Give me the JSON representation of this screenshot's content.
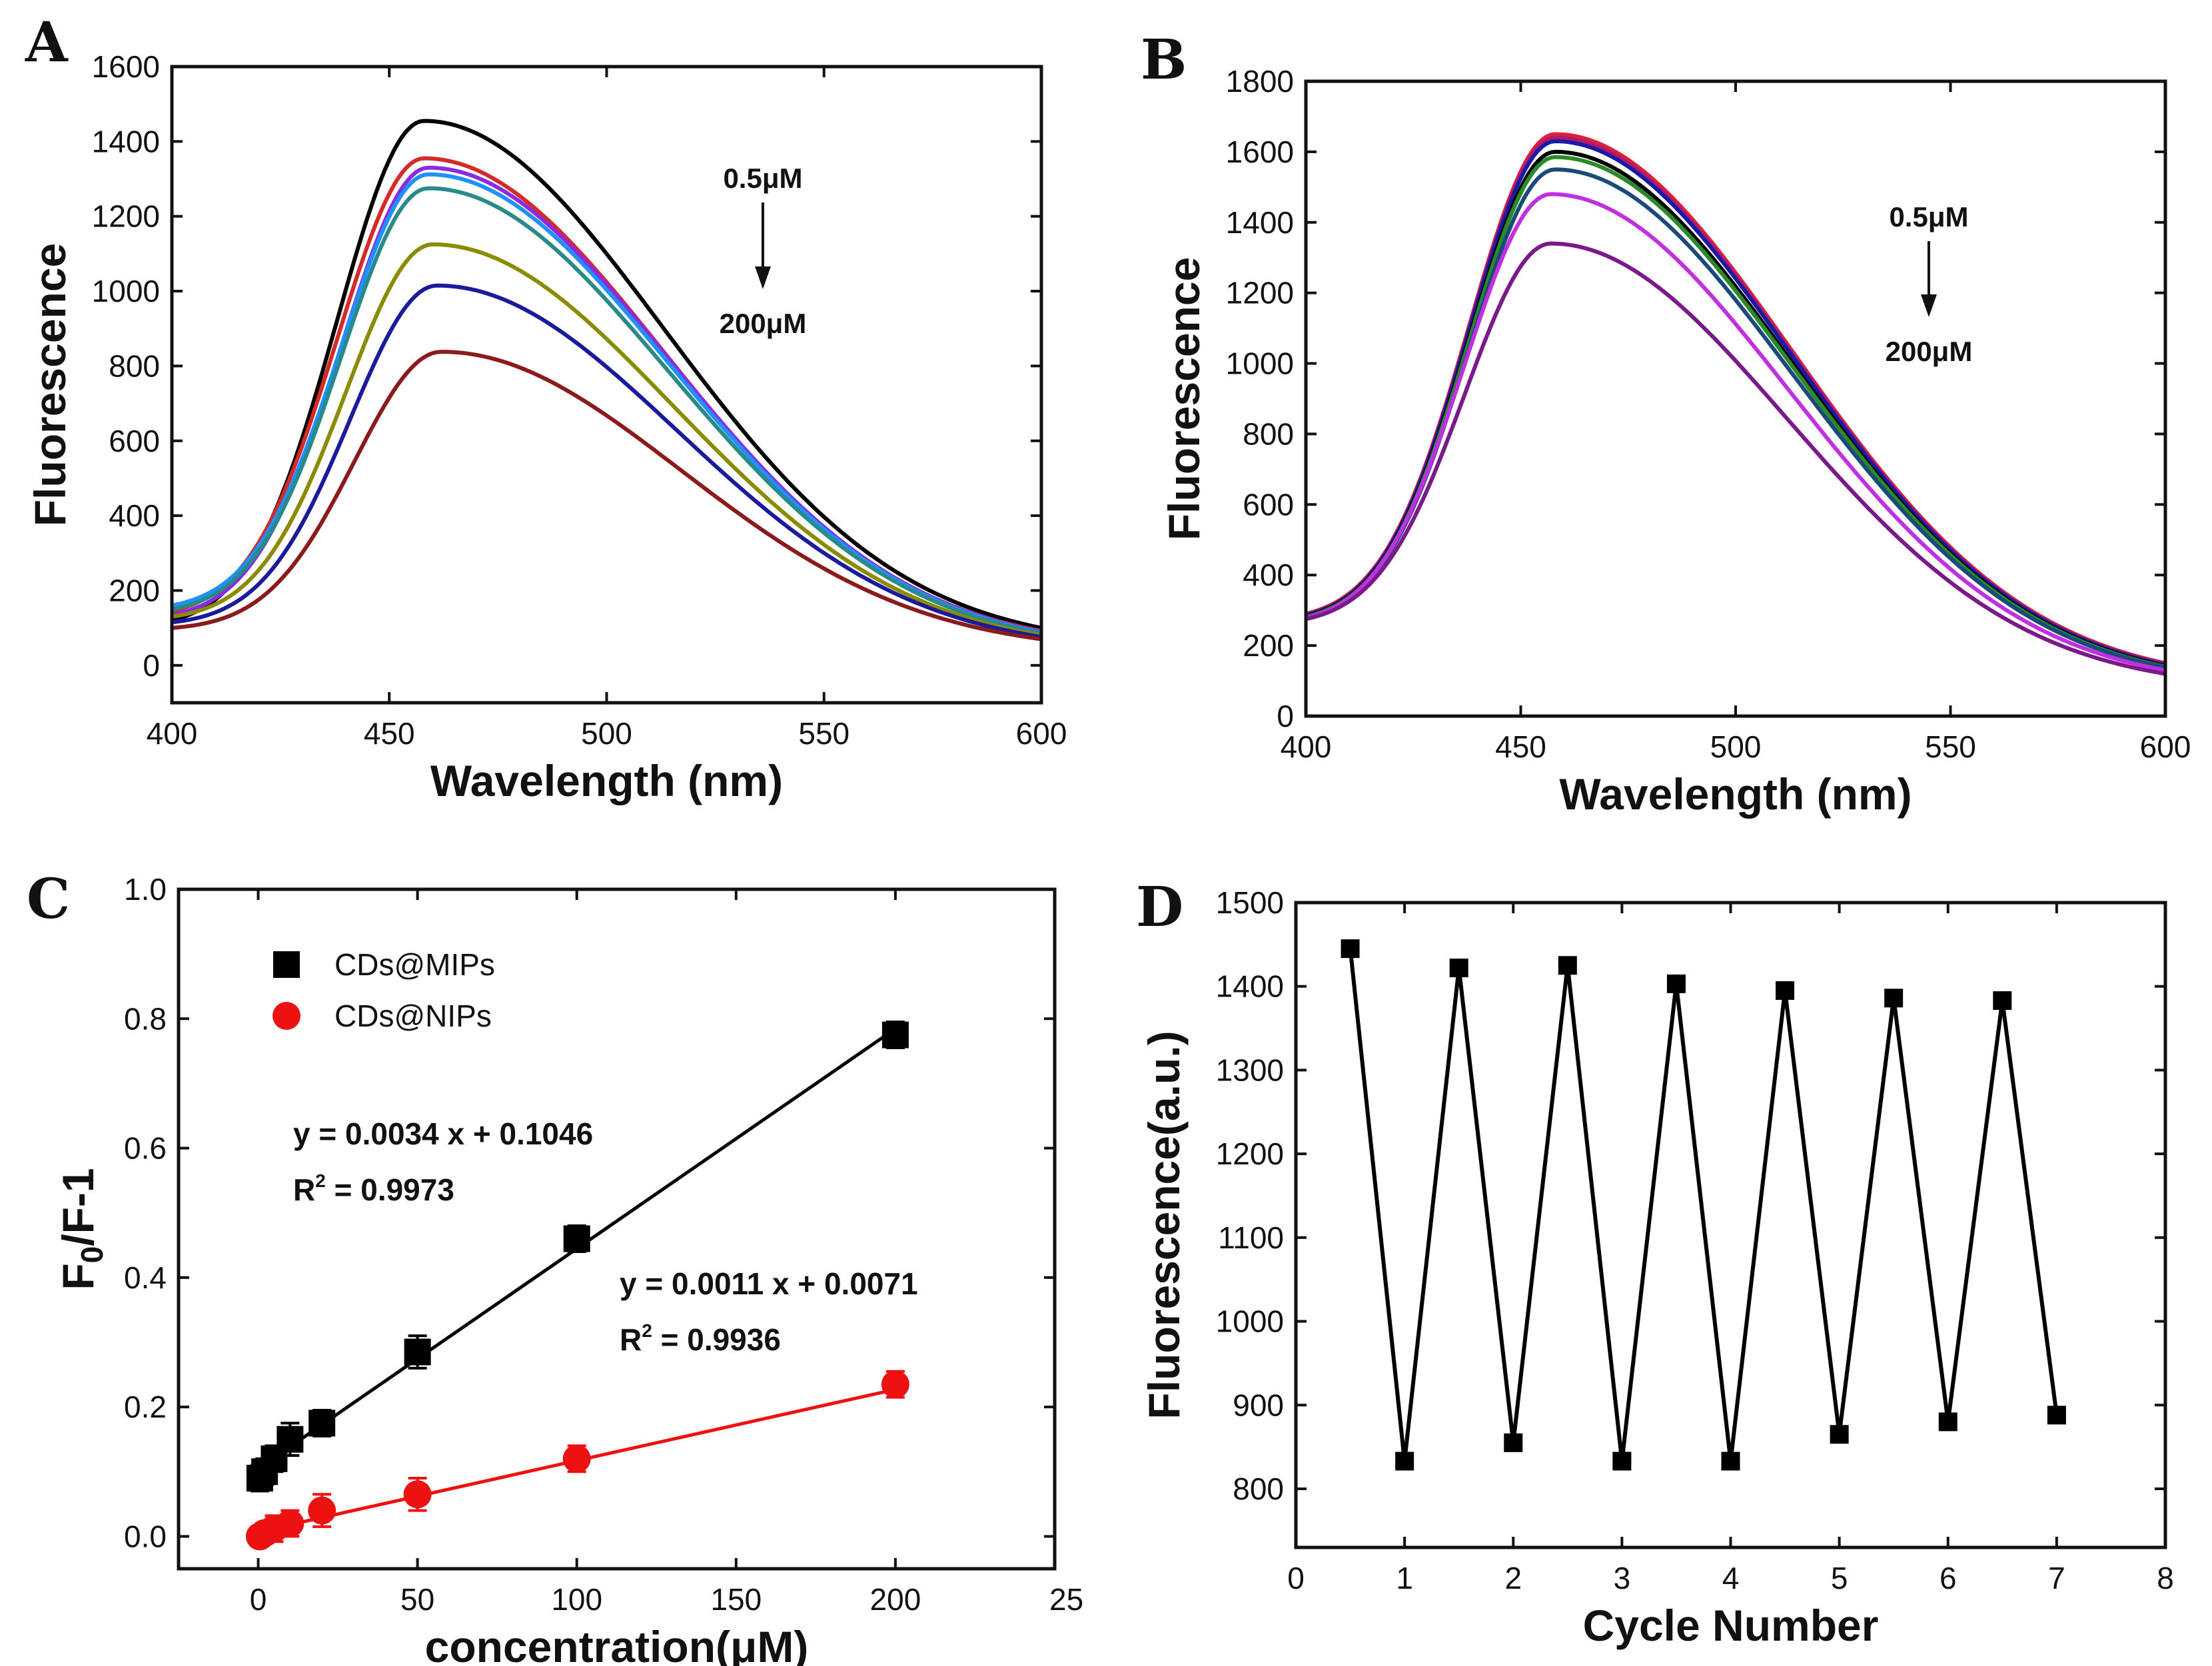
{
  "chart_data": [
    {
      "id": "A",
      "panel_label": "A",
      "type": "line",
      "xlabel": "Wavelength (nm)",
      "ylabel": "Fluorescence",
      "xlim": [
        400,
        600
      ],
      "ylim": [
        -100,
        1600
      ],
      "xticks": [
        400,
        450,
        500,
        550,
        600
      ],
      "yticks": [
        0,
        200,
        400,
        600,
        800,
        1000,
        1200,
        1400,
        1600
      ],
      "annotation_top": "0.5μM",
      "annotation_bottom": "200μM",
      "curves": [
        {
          "color": "#000000",
          "start": 120,
          "peak": 1455,
          "peak_x": 458,
          "end": 100
        },
        {
          "color": "#d42a2a",
          "start": 145,
          "peak": 1355,
          "peak_x": 458,
          "end": 92
        },
        {
          "color": "#8a2be2",
          "start": 135,
          "peak": 1330,
          "peak_x": 459,
          "end": 90
        },
        {
          "color": "#1e90ff",
          "start": 160,
          "peak": 1312,
          "peak_x": 459,
          "end": 88
        },
        {
          "color": "#2a8a8a",
          "start": 150,
          "peak": 1275,
          "peak_x": 459,
          "end": 86
        },
        {
          "color": "#8b8b00",
          "start": 130,
          "peak": 1125,
          "peak_x": 460,
          "end": 80
        },
        {
          "color": "#1a1a9c",
          "start": 115,
          "peak": 1015,
          "peak_x": 461,
          "end": 76
        },
        {
          "color": "#8b1a1a",
          "start": 100,
          "peak": 838,
          "peak_x": 462,
          "end": 70
        }
      ]
    },
    {
      "id": "B",
      "panel_label": "B",
      "type": "line",
      "xlabel": "Wavelength (nm)",
      "ylabel": "Fluorescence",
      "xlim": [
        400,
        600
      ],
      "ylim": [
        0,
        1800
      ],
      "xticks": [
        400,
        450,
        500,
        550,
        600
      ],
      "yticks": [
        0,
        200,
        400,
        600,
        800,
        1000,
        1200,
        1400,
        1600,
        1800
      ],
      "annotation_top": "0.5μM",
      "annotation_bottom": "200μM",
      "curves": [
        {
          "color": "#e0203a",
          "start": 290,
          "peak": 1650,
          "peak_x": 458,
          "end": 150
        },
        {
          "color": "#b01a6a",
          "start": 288,
          "peak": 1640,
          "peak_x": 458,
          "end": 148
        },
        {
          "color": "#1a1aaa",
          "start": 286,
          "peak": 1630,
          "peak_x": 458,
          "end": 145
        },
        {
          "color": "#000000",
          "start": 284,
          "peak": 1600,
          "peak_x": 458,
          "end": 142
        },
        {
          "color": "#2a8a2a",
          "start": 282,
          "peak": 1585,
          "peak_x": 458,
          "end": 140
        },
        {
          "color": "#1a4a7a",
          "start": 280,
          "peak": 1550,
          "peak_x": 458,
          "end": 138
        },
        {
          "color": "#c030e0",
          "start": 278,
          "peak": 1480,
          "peak_x": 457,
          "end": 130
        },
        {
          "color": "#7a1a8a",
          "start": 275,
          "peak": 1340,
          "peak_x": 457,
          "end": 120
        }
      ]
    },
    {
      "id": "C",
      "panel_label": "C",
      "type": "scatter",
      "xlabel": "concentration(μM)",
      "ylabel_main": "F",
      "ylabel_sub": "0",
      "ylabel_rest": "/F-1",
      "xlim": [
        -25,
        250
      ],
      "ylim": [
        -0.05,
        1.0
      ],
      "xticks": [
        0,
        50,
        100,
        150,
        200
      ],
      "xtick_labels": [
        "0",
        "50",
        "100",
        "150",
        "200"
      ],
      "xticks_extra_label": "25",
      "yticks": [
        0.0,
        0.2,
        0.4,
        0.6,
        0.8,
        1.0
      ],
      "ytick_labels": [
        "0.0",
        "0.2",
        "0.4",
        "0.6",
        "0.8",
        "1.0"
      ],
      "series": [
        {
          "name": "CDs@MIPs",
          "color": "#000000",
          "marker": "square",
          "x": [
            0.5,
            2,
            5,
            10,
            20,
            50,
            100,
            200
          ],
          "y": [
            0.09,
            0.1,
            0.12,
            0.15,
            0.175,
            0.285,
            0.46,
            0.775
          ],
          "err": [
            0.02,
            0.02,
            0.02,
            0.025,
            0.02,
            0.025,
            0.02,
            0.02
          ],
          "fit": {
            "slope": 0.0034,
            "intercept": 0.1046
          },
          "equation": "y = 0.0034 x + 0.1046",
          "r2_prefix": "R",
          "r2_sup": "2",
          "r2_value": " = 0.9973"
        },
        {
          "name": "CDs@NIPs",
          "color": "#ee1111",
          "marker": "circle",
          "x": [
            0.5,
            2,
            5,
            10,
            20,
            50,
            100,
            200
          ],
          "y": [
            0.0,
            0.005,
            0.012,
            0.02,
            0.04,
            0.065,
            0.12,
            0.235
          ],
          "err": [
            0.015,
            0.015,
            0.02,
            0.02,
            0.025,
            0.025,
            0.02,
            0.02
          ],
          "fit": {
            "slope": 0.0011,
            "intercept": 0.0071
          },
          "equation": "y = 0.0011 x + 0.0071",
          "r2_prefix": "R",
          "r2_sup": "2",
          "r2_value": " = 0.9936"
        }
      ],
      "legend_position": "top-left"
    },
    {
      "id": "D",
      "panel_label": "D",
      "type": "line",
      "xlabel": "Cycle Number",
      "ylabel": "Fluorescence(a.u.)",
      "xlim": [
        0,
        8
      ],
      "ylim": [
        730,
        1500
      ],
      "xticks": [
        0,
        1,
        2,
        3,
        4,
        5,
        6,
        7,
        8
      ],
      "yticks": [
        800,
        900,
        1000,
        1100,
        1200,
        1300,
        1400,
        1500
      ],
      "x": [
        0.5,
        1,
        1.5,
        2,
        2.5,
        3,
        3.5,
        4,
        4.5,
        5,
        5.5,
        6,
        6.5,
        7
      ],
      "y": [
        1445,
        833,
        1422,
        855,
        1425,
        833,
        1403,
        833,
        1395,
        865,
        1386,
        880,
        1383,
        888
      ],
      "color": "#000000",
      "marker": "square"
    }
  ]
}
